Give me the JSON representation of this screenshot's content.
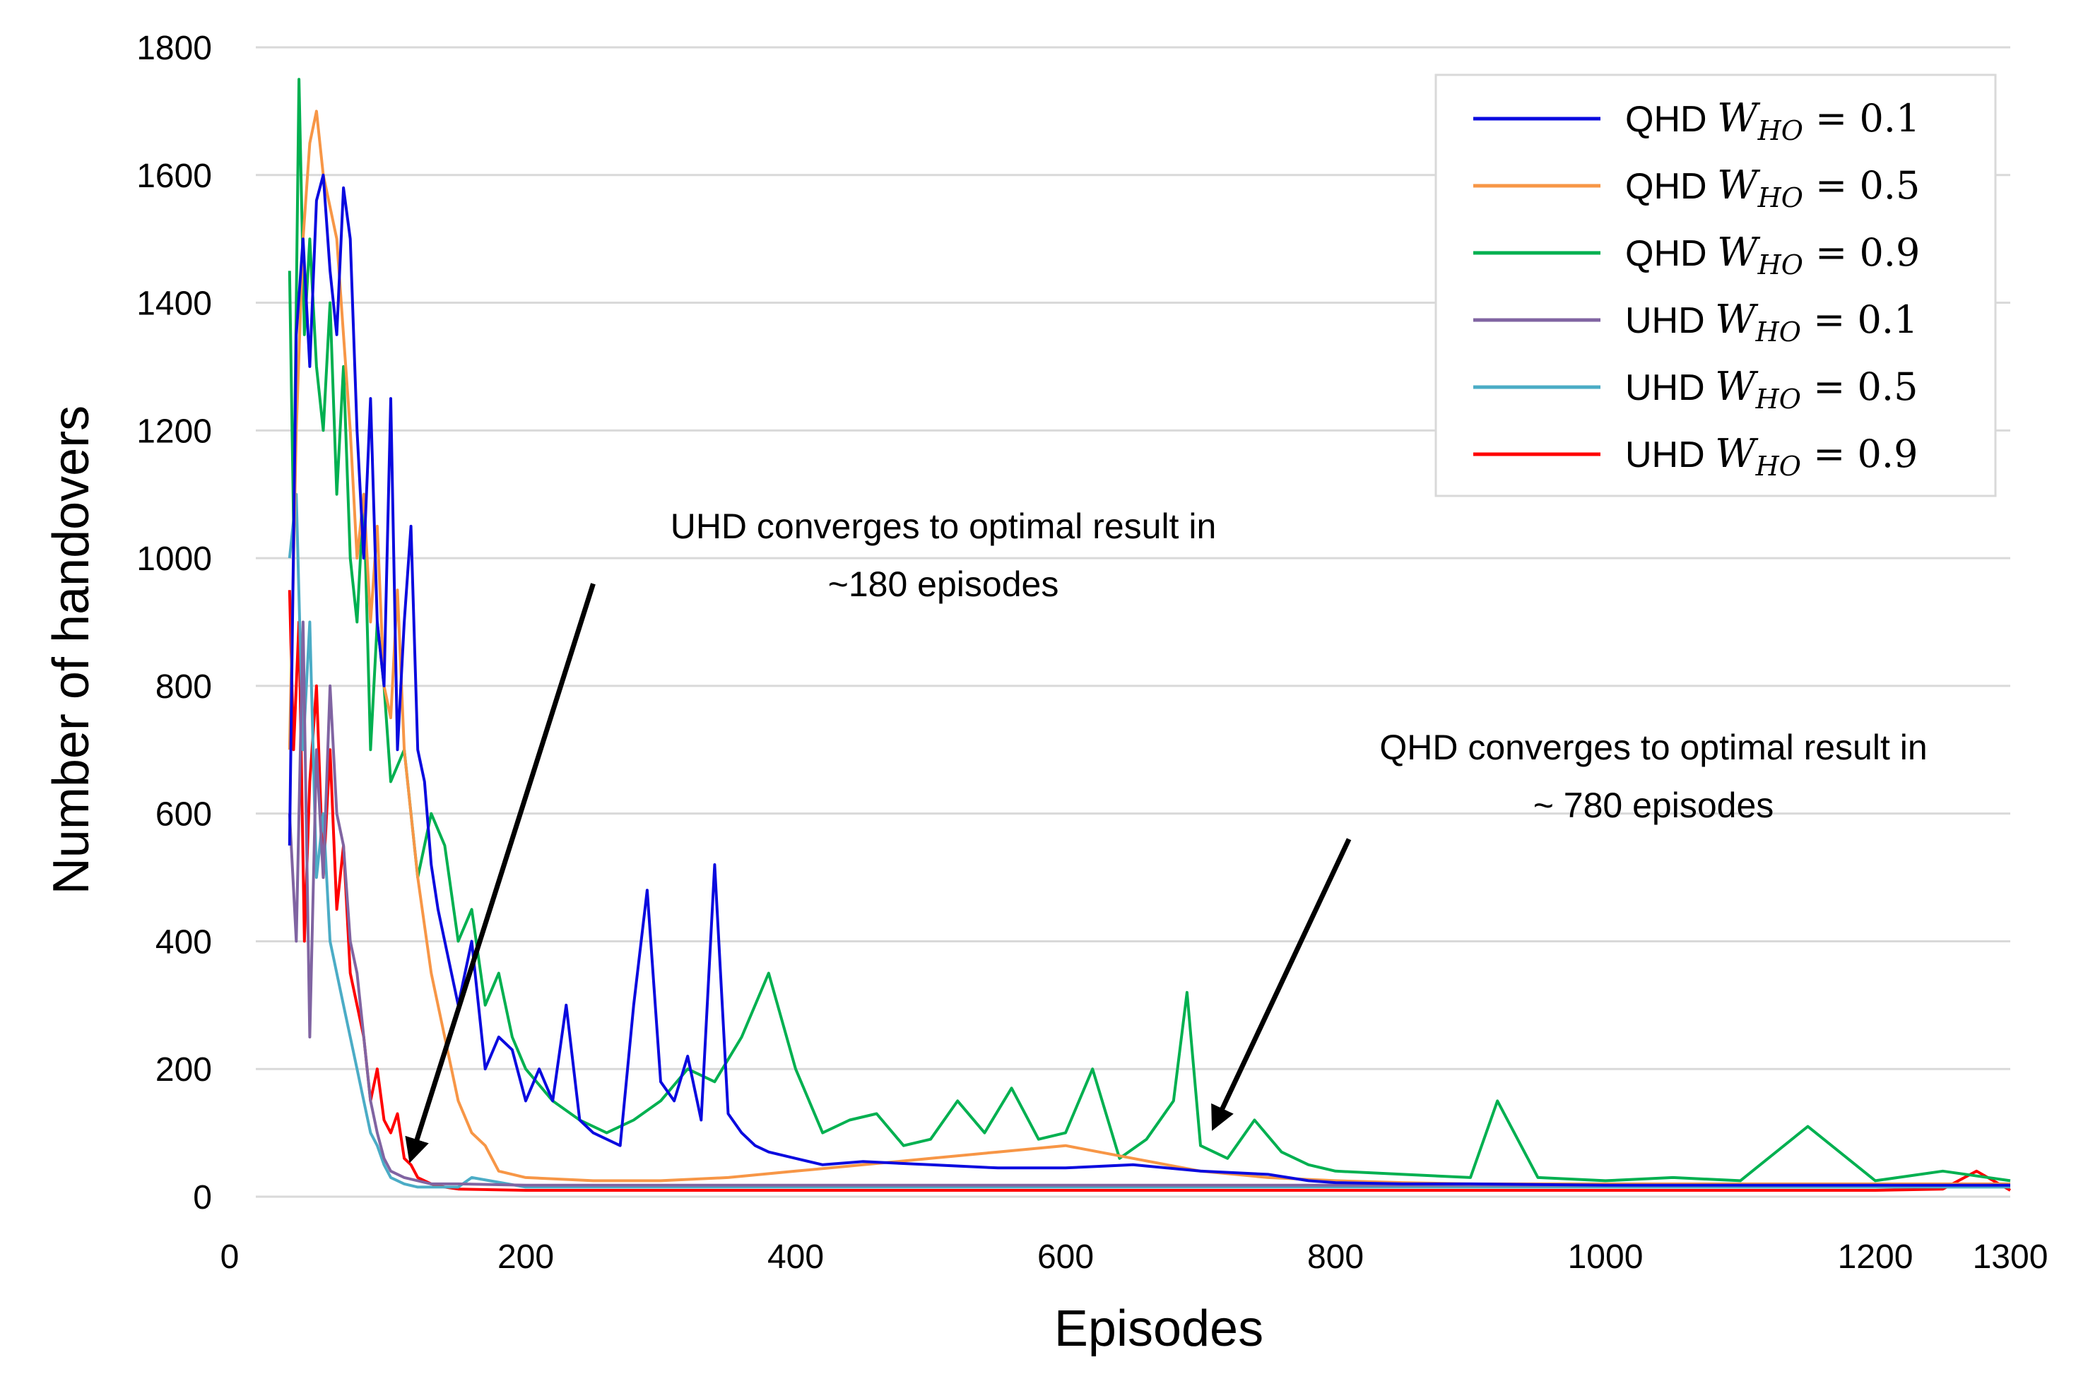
{
  "chart_data": {
    "type": "line",
    "title": "",
    "xlabel": "Episodes",
    "ylabel": "Number of handovers",
    "xlim": [
      0,
      1300
    ],
    "ylim": [
      0,
      1800
    ],
    "xticks": [
      0,
      200,
      400,
      600,
      800,
      1000,
      1200,
      1300
    ],
    "yticks": [
      0,
      200,
      400,
      600,
      800,
      1000,
      1200,
      1400,
      1600,
      1800
    ],
    "grid": "horizontal",
    "legend_position": "top-right",
    "series": [
      {
        "name": "QHD W_HO = 0.1",
        "prefix": "QHD",
        "weight": "0.1",
        "color": "#0a0adf",
        "x": [
          25,
          30,
          35,
          40,
          45,
          50,
          55,
          60,
          65,
          70,
          75,
          80,
          85,
          90,
          95,
          100,
          105,
          110,
          115,
          120,
          125,
          130,
          135,
          140,
          150,
          160,
          170,
          180,
          190,
          200,
          210,
          220,
          230,
          240,
          250,
          270,
          280,
          290,
          300,
          310,
          320,
          330,
          340,
          350,
          360,
          370,
          380,
          400,
          420,
          450,
          500,
          550,
          600,
          650,
          700,
          750,
          780,
          800,
          850,
          900,
          1000,
          1100,
          1200,
          1300
        ],
        "y": [
          550,
          1350,
          1500,
          1300,
          1560,
          1600,
          1450,
          1350,
          1580,
          1500,
          1200,
          1000,
          1250,
          900,
          800,
          1250,
          700,
          900,
          1050,
          700,
          650,
          520,
          450,
          400,
          300,
          400,
          200,
          250,
          230,
          150,
          200,
          150,
          300,
          120,
          100,
          80,
          300,
          480,
          180,
          150,
          220,
          120,
          520,
          130,
          100,
          80,
          70,
          60,
          50,
          55,
          50,
          45,
          45,
          50,
          40,
          35,
          25,
          22,
          20,
          20,
          18,
          18,
          18,
          18
        ]
      },
      {
        "name": "QHD W_HO = 0.5",
        "prefix": "QHD",
        "weight": "0.5",
        "color": "#f79646",
        "x": [
          25,
          30,
          35,
          40,
          45,
          50,
          55,
          60,
          65,
          70,
          75,
          80,
          85,
          90,
          95,
          100,
          105,
          110,
          115,
          120,
          130,
          140,
          150,
          160,
          170,
          180,
          200,
          250,
          300,
          350,
          400,
          450,
          500,
          550,
          600,
          650,
          700,
          750,
          800,
          850,
          900,
          1000,
          1100,
          1200,
          1300
        ],
        "y": [
          700,
          1200,
          1500,
          1650,
          1700,
          1600,
          1550,
          1500,
          1350,
          1200,
          1000,
          1100,
          900,
          1050,
          800,
          750,
          950,
          700,
          600,
          500,
          350,
          250,
          150,
          100,
          80,
          40,
          30,
          25,
          25,
          30,
          40,
          50,
          60,
          70,
          80,
          60,
          40,
          30,
          25,
          22,
          20,
          20,
          20,
          20,
          20
        ]
      },
      {
        "name": "QHD W_HO = 0.9",
        "prefix": "QHD",
        "weight": "0.9",
        "color": "#00b050",
        "x": [
          25,
          28,
          32,
          36,
          40,
          45,
          50,
          55,
          60,
          65,
          70,
          75,
          80,
          85,
          90,
          95,
          100,
          110,
          120,
          130,
          140,
          150,
          160,
          170,
          180,
          190,
          200,
          220,
          240,
          260,
          280,
          300,
          320,
          340,
          360,
          380,
          400,
          420,
          440,
          460,
          480,
          500,
          520,
          540,
          560,
          580,
          600,
          620,
          640,
          660,
          680,
          690,
          700,
          720,
          740,
          760,
          780,
          800,
          850,
          900,
          920,
          950,
          1000,
          1050,
          1100,
          1150,
          1200,
          1250,
          1300
        ],
        "y": [
          1450,
          1050,
          1750,
          1350,
          1500,
          1300,
          1200,
          1400,
          1100,
          1300,
          1000,
          900,
          1100,
          700,
          900,
          800,
          650,
          700,
          500,
          600,
          550,
          400,
          450,
          300,
          350,
          250,
          200,
          150,
          120,
          100,
          120,
          150,
          200,
          180,
          250,
          350,
          200,
          100,
          120,
          130,
          80,
          90,
          150,
          100,
          170,
          90,
          100,
          200,
          60,
          90,
          150,
          320,
          80,
          60,
          120,
          70,
          50,
          40,
          35,
          30,
          150,
          30,
          25,
          30,
          25,
          110,
          25,
          40,
          25
        ]
      },
      {
        "name": "UHD W_HO = 0.1",
        "prefix": "UHD",
        "weight": "0.1",
        "color": "#8064a2",
        "x": [
          25,
          30,
          35,
          40,
          45,
          50,
          55,
          60,
          65,
          70,
          75,
          80,
          85,
          90,
          95,
          100,
          110,
          120,
          130,
          150,
          200,
          300,
          400,
          600,
          800,
          1000,
          1300
        ],
        "y": [
          600,
          400,
          900,
          250,
          700,
          500,
          800,
          600,
          550,
          400,
          350,
          250,
          150,
          100,
          60,
          40,
          30,
          25,
          20,
          20,
          18,
          18,
          18,
          18,
          18,
          18,
          18
        ]
      },
      {
        "name": "UHD W_HO = 0.5",
        "prefix": "UHD",
        "weight": "0.5",
        "color": "#4bacc6",
        "x": [
          25,
          30,
          35,
          40,
          45,
          50,
          55,
          60,
          65,
          70,
          75,
          80,
          85,
          90,
          95,
          100,
          110,
          120,
          130,
          150,
          160,
          200,
          300,
          400,
          600,
          800,
          1000,
          1300
        ],
        "y": [
          1000,
          1100,
          700,
          900,
          500,
          600,
          400,
          350,
          300,
          250,
          200,
          150,
          100,
          80,
          50,
          30,
          20,
          15,
          15,
          15,
          30,
          15,
          15,
          15,
          15,
          15,
          15,
          15
        ]
      },
      {
        "name": "UHD W_HO = 0.9",
        "prefix": "UHD",
        "weight": "0.9",
        "color": "#ff0000",
        "x": [
          25,
          28,
          32,
          36,
          40,
          45,
          50,
          55,
          60,
          65,
          70,
          75,
          80,
          85,
          90,
          95,
          100,
          105,
          110,
          115,
          120,
          130,
          140,
          150,
          200,
          300,
          400,
          500,
          600,
          800,
          1000,
          1200,
          1250,
          1275,
          1300
        ],
        "y": [
          950,
          700,
          900,
          400,
          650,
          800,
          500,
          700,
          450,
          550,
          350,
          300,
          250,
          150,
          200,
          120,
          100,
          130,
          60,
          50,
          30,
          20,
          15,
          12,
          10,
          10,
          10,
          10,
          10,
          10,
          10,
          10,
          12,
          40,
          10
        ]
      }
    ],
    "annotations": [
      {
        "lines": [
          "UHD converges to optimal result in",
          "~180 episodes"
        ],
        "arrow_from": [
          250,
          960
        ],
        "arrow_to": [
          115,
          60
        ]
      },
      {
        "lines": [
          "QHD converges to optimal result in",
          "~ 780 episodes"
        ],
        "arrow_from": [
          810,
          560
        ],
        "arrow_to": [
          710,
          110
        ]
      }
    ]
  },
  "legend": {
    "variable": "W",
    "subscript": "HO",
    "equals": "="
  }
}
